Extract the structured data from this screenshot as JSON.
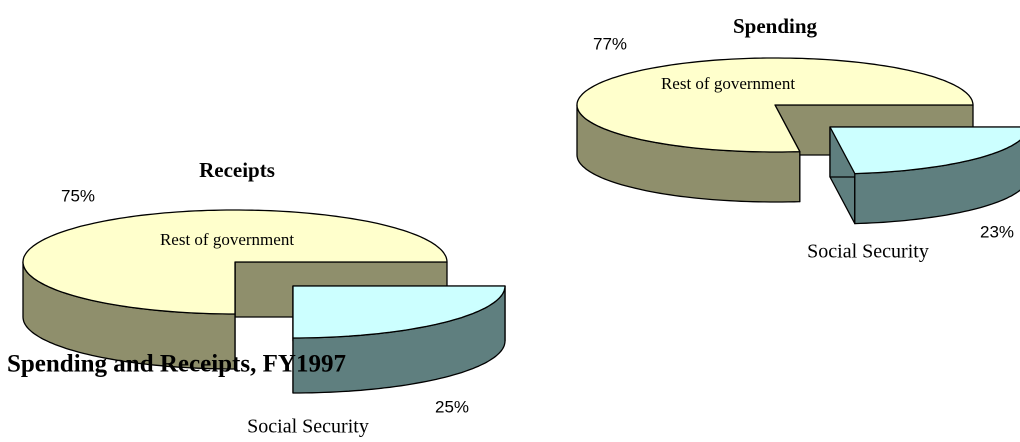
{
  "title": "Spending and Receipts, FY1997",
  "chart_data": [
    {
      "type": "pie3d",
      "title": "Spending",
      "categories": [
        "Rest of government",
        "Social Security"
      ],
      "values": [
        77,
        23
      ],
      "value_labels": [
        "77%",
        "23%"
      ],
      "colors": [
        "#ffffcc",
        "#ccffff"
      ],
      "side_colors": [
        "#8f8f6c",
        "#5f7f7f"
      ]
    },
    {
      "type": "pie3d",
      "title": "Receipts",
      "categories": [
        "Rest of government",
        "Social Security"
      ],
      "values": [
        75,
        25
      ],
      "value_labels": [
        "75%",
        "25%"
      ],
      "colors": [
        "#ffffcc",
        "#ccffff"
      ],
      "side_colors": [
        "#8f8f6c",
        "#5f7f7f"
      ]
    }
  ]
}
